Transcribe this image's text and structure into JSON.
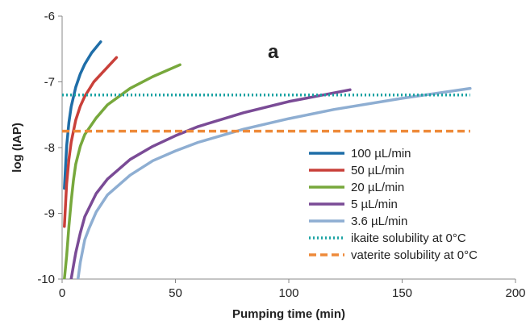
{
  "chart_data": {
    "type": "line",
    "panel_label": "a",
    "xlabel": "Pumping time (min)",
    "ylabel": "log (IAP)",
    "xlim": [
      0,
      200
    ],
    "ylim": [
      -10,
      -6
    ],
    "xticks": [
      0,
      50,
      100,
      150,
      200
    ],
    "yticks": [
      -10,
      -9,
      -8,
      -7,
      -6
    ],
    "grid": false,
    "legend_position": "center-right",
    "series": [
      {
        "name": "100 µL/min",
        "color": "#1f6ea8",
        "dash": "solid",
        "x": [
          1,
          2,
          3,
          4,
          6,
          8,
          10,
          13,
          17
        ],
        "y": [
          -8.62,
          -7.98,
          -7.62,
          -7.38,
          -7.08,
          -6.88,
          -6.73,
          -6.56,
          -6.39
        ]
      },
      {
        "name": "50 µL/min",
        "color": "#c9403a",
        "dash": "solid",
        "x": [
          1,
          2,
          3,
          4,
          6,
          8,
          10,
          14,
          18,
          24
        ],
        "y": [
          -9.2,
          -8.55,
          -8.18,
          -7.92,
          -7.58,
          -7.37,
          -7.22,
          -7.0,
          -6.85,
          -6.63
        ]
      },
      {
        "name": "20 µL/min",
        "color": "#77a83c",
        "dash": "solid",
        "x": [
          1,
          2,
          3,
          4,
          5,
          6,
          8,
          10,
          15,
          20,
          30,
          40,
          52
        ],
        "y": [
          -10.0,
          -9.65,
          -9.2,
          -8.82,
          -8.5,
          -8.25,
          -7.98,
          -7.8,
          -7.55,
          -7.35,
          -7.1,
          -6.92,
          -6.74
        ]
      },
      {
        "name": "5 µL/min",
        "color": "#7a4b96",
        "dash": "solid",
        "x": [
          4,
          5,
          6,
          8,
          10,
          15,
          20,
          30,
          40,
          50,
          60,
          80,
          100,
          127
        ],
        "y": [
          -10.0,
          -9.8,
          -9.6,
          -9.3,
          -9.05,
          -8.7,
          -8.48,
          -8.18,
          -7.98,
          -7.82,
          -7.68,
          -7.47,
          -7.3,
          -7.12
        ]
      },
      {
        "name": "3.6 µL/min",
        "color": "#8eaed2",
        "dash": "solid",
        "x": [
          7,
          8,
          10,
          12,
          15,
          20,
          30,
          40,
          50,
          60,
          80,
          100,
          120,
          150,
          180
        ],
        "y": [
          -10.0,
          -9.75,
          -9.4,
          -9.22,
          -8.98,
          -8.72,
          -8.42,
          -8.2,
          -8.05,
          -7.92,
          -7.72,
          -7.56,
          -7.42,
          -7.25,
          -7.1
        ]
      },
      {
        "name": "ikaite solubility at 0°C",
        "color": "#1aa3a3",
        "dash": "dotted",
        "x": [
          0,
          180
        ],
        "y": [
          -7.2,
          -7.2
        ]
      },
      {
        "name": "vaterite solubility at 0°C",
        "color": "#ee8a3a",
        "dash": "dashed",
        "x": [
          0,
          180
        ],
        "y": [
          -7.75,
          -7.75
        ]
      }
    ]
  }
}
